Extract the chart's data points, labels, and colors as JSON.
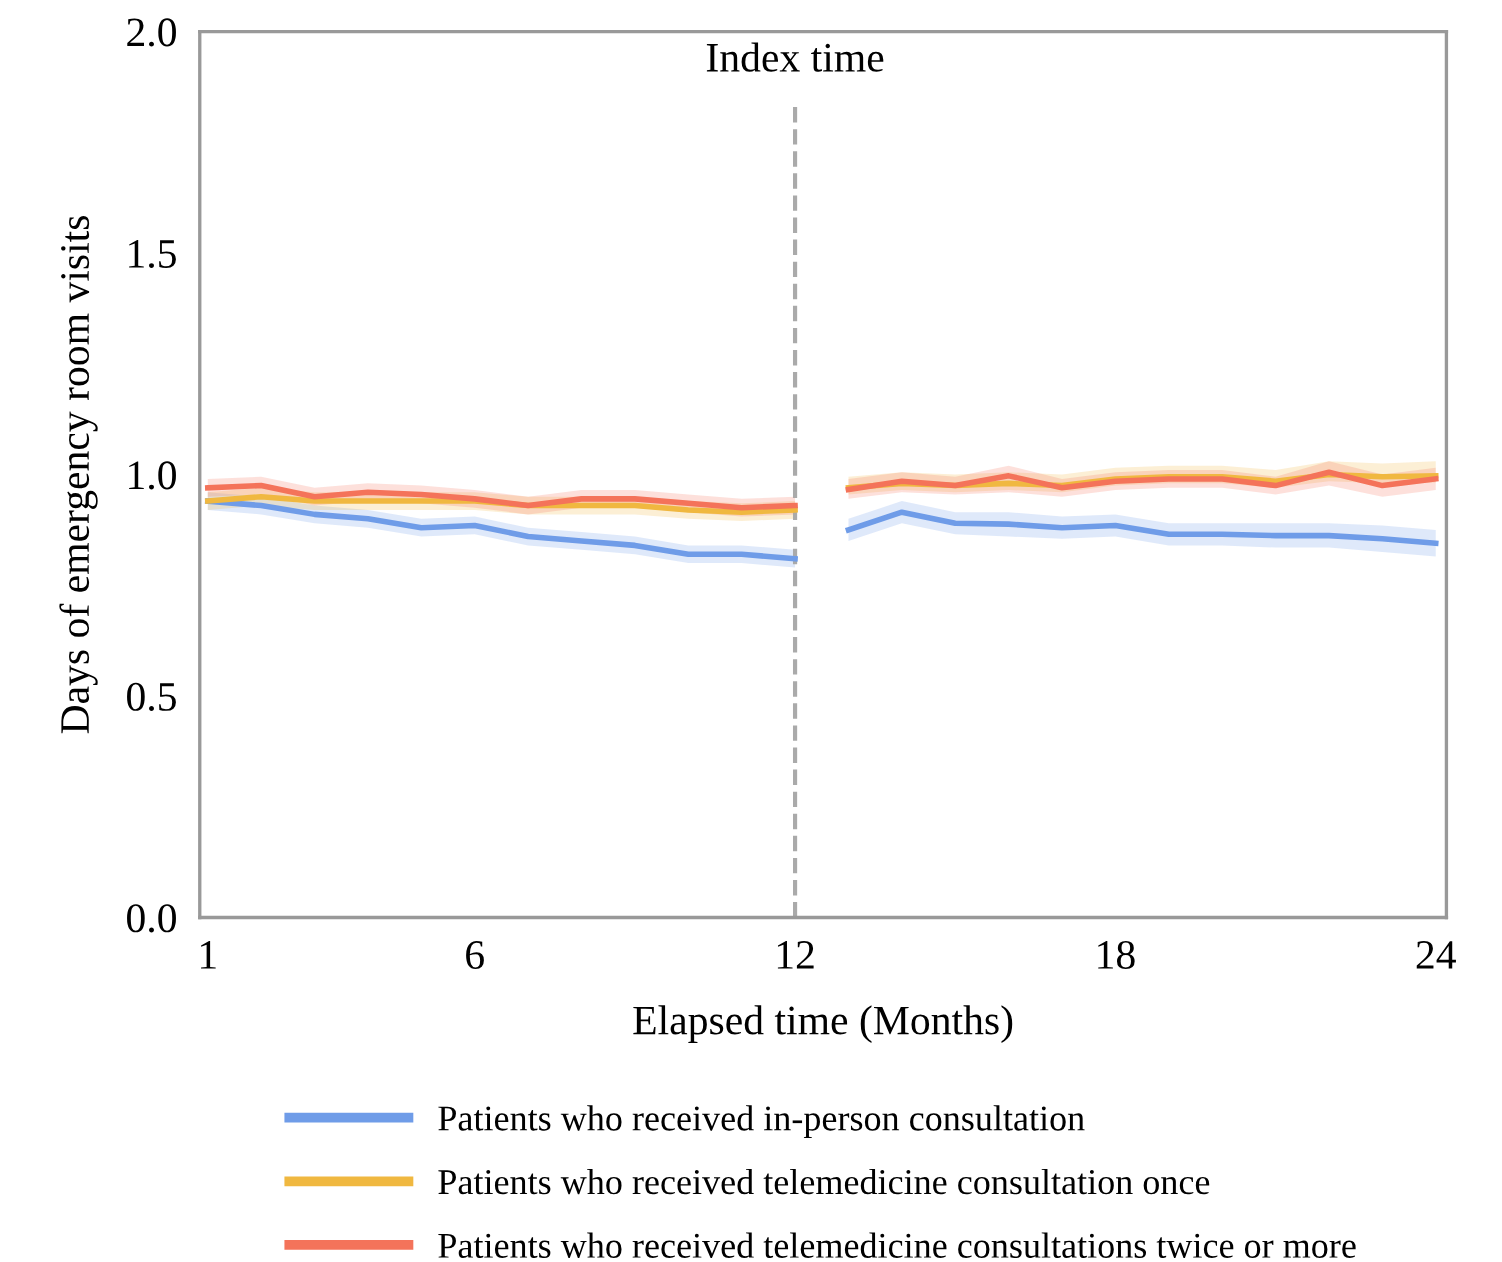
{
  "chart_data": {
    "type": "line",
    "xlabel": "Elapsed time (Months)",
    "ylabel": "Days of emergency room visits",
    "x": [
      1,
      2,
      3,
      4,
      5,
      6,
      7,
      8,
      9,
      10,
      11,
      12,
      12.5,
      13,
      14,
      15,
      16,
      17,
      18,
      19,
      20,
      21,
      22,
      23,
      24
    ],
    "series": [
      {
        "name": "Patients who received in-person consultation",
        "color": "#6f9ce8",
        "values": [
          0.94,
          0.93,
          0.91,
          0.9,
          0.88,
          0.885,
          0.86,
          0.85,
          0.84,
          0.82,
          0.82,
          0.81,
          null,
          0.875,
          0.915,
          0.89,
          0.888,
          0.88,
          0.885,
          0.865,
          0.865,
          0.862,
          0.862,
          0.855,
          0.845
        ],
        "lower": [
          0.92,
          0.91,
          0.89,
          0.88,
          0.86,
          0.865,
          0.84,
          0.83,
          0.82,
          0.8,
          0.8,
          0.79,
          null,
          0.85,
          0.89,
          0.865,
          0.86,
          0.855,
          0.86,
          0.84,
          0.84,
          0.835,
          0.835,
          0.825,
          0.815
        ],
        "upper": [
          0.96,
          0.95,
          0.93,
          0.92,
          0.9,
          0.905,
          0.88,
          0.87,
          0.86,
          0.84,
          0.84,
          0.83,
          null,
          0.9,
          0.94,
          0.915,
          0.915,
          0.905,
          0.91,
          0.89,
          0.89,
          0.89,
          0.89,
          0.885,
          0.875
        ]
      },
      {
        "name": "Patients who received telemedicine consultation once",
        "color": "#f0b840",
        "values": [
          0.94,
          0.95,
          0.94,
          0.94,
          0.94,
          0.94,
          0.93,
          0.93,
          0.93,
          0.92,
          0.915,
          0.92,
          null,
          0.97,
          0.98,
          0.975,
          0.98,
          0.975,
          0.99,
          0.995,
          0.995,
          0.985,
          1.0,
          0.995,
          0.997
        ],
        "lower": [
          0.92,
          0.93,
          0.92,
          0.92,
          0.92,
          0.92,
          0.91,
          0.91,
          0.91,
          0.9,
          0.895,
          0.9,
          null,
          0.955,
          0.965,
          0.96,
          0.965,
          0.96,
          0.975,
          0.98,
          0.98,
          0.97,
          0.985,
          0.98,
          0.982
        ],
        "upper": [
          0.96,
          0.97,
          0.96,
          0.96,
          0.96,
          0.96,
          0.95,
          0.95,
          0.95,
          0.94,
          0.935,
          0.94,
          null,
          0.995,
          1.005,
          1.0,
          1.005,
          1.0,
          1.015,
          1.02,
          1.02,
          1.01,
          1.03,
          1.025,
          1.03
        ]
      },
      {
        "name": "Patients who received telemedicine consultations twice or more",
        "color": "#f4735a",
        "values": [
          0.97,
          0.975,
          0.95,
          0.96,
          0.955,
          0.945,
          0.93,
          0.945,
          0.945,
          0.935,
          0.925,
          0.93,
          null,
          0.966,
          0.985,
          0.975,
          0.997,
          0.97,
          0.985,
          0.99,
          0.99,
          0.975,
          1.005,
          0.975,
          0.99
        ],
        "lower": [
          0.95,
          0.955,
          0.93,
          0.94,
          0.935,
          0.925,
          0.91,
          0.925,
          0.925,
          0.915,
          0.905,
          0.91,
          null,
          0.945,
          0.96,
          0.955,
          0.96,
          0.95,
          0.965,
          0.97,
          0.97,
          0.955,
          0.975,
          0.95,
          0.965
        ],
        "upper": [
          0.99,
          0.995,
          0.97,
          0.98,
          0.975,
          0.965,
          0.95,
          0.965,
          0.965,
          0.955,
          0.945,
          0.95,
          null,
          0.99,
          1.005,
          0.995,
          1.02,
          0.99,
          1.005,
          1.01,
          1.01,
          0.995,
          1.03,
          1.0,
          1.015
        ]
      }
    ],
    "xlim": [
      0.85,
      24.2
    ],
    "xticks": [
      1,
      6,
      12,
      18,
      24
    ],
    "ylim": [
      0,
      2
    ],
    "yticks": [
      {
        "value": 0,
        "label": "0.0"
      },
      {
        "value": 0.5,
        "label": "0.5"
      },
      {
        "value": 1,
        "label": "1.0"
      },
      {
        "value": 1.5,
        "label": "1.5"
      },
      {
        "value": 2,
        "label": "2.0"
      }
    ],
    "ref_lines": [
      {
        "axis": "x",
        "value": 12,
        "label": "Index time",
        "color": "#aaaaaa",
        "line_style": "dashed"
      }
    ],
    "grid": false,
    "legend": "bottom",
    "marker": "none",
    "line_style": "solid"
  }
}
